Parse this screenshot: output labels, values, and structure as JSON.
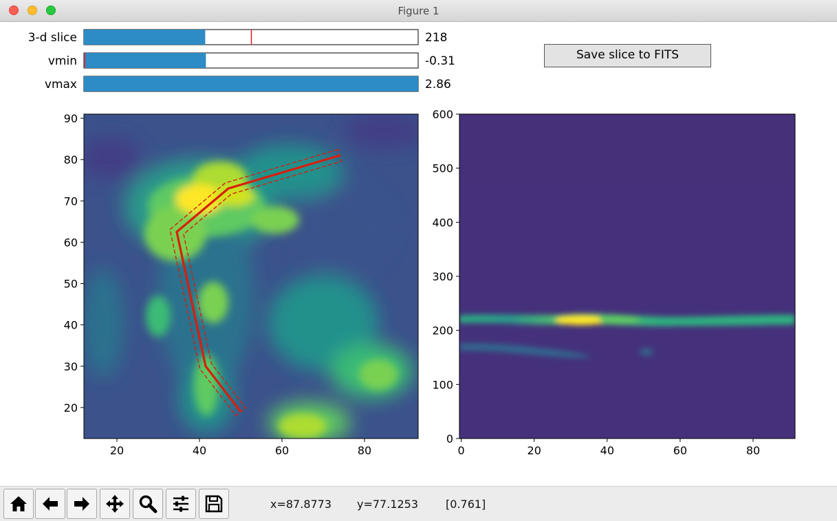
{
  "window": {
    "title": "Figure 1"
  },
  "sliders": [
    {
      "label": "3-d slice",
      "value_text": "218",
      "fill_fraction": 0.363,
      "marker_fraction": 0.501
    },
    {
      "label": "vmin",
      "value_text": "-0.31",
      "fill_fraction": 0.365,
      "marker_fraction": 0.0
    },
    {
      "label": "vmax",
      "value_text": "2.86",
      "fill_fraction": 1.0
    }
  ],
  "save_button": {
    "label": "Save slice to FITS"
  },
  "toolbar": {
    "buttons": [
      "home-icon",
      "back-icon",
      "forward-icon",
      "pan-icon",
      "zoom-icon",
      "configure-icon",
      "save-icon"
    ],
    "x_readout": "x=87.8773",
    "y_readout": "y=77.1253",
    "value_readout": "[0.761]"
  },
  "colors": {
    "slider_fill": "#2d8bc6",
    "path_line": "#d81f0c",
    "colormap": "viridis"
  },
  "chart_data": [
    {
      "type": "heatmap",
      "title": "",
      "colormap": "viridis",
      "xlim": [
        12,
        93
      ],
      "ylim": [
        12.5,
        91
      ],
      "xticks": [
        20,
        40,
        60,
        80
      ],
      "yticks": [
        20,
        30,
        40,
        50,
        60,
        70,
        80,
        90
      ],
      "path": [
        [
          74,
          81
        ],
        [
          47,
          73
        ],
        [
          34.5,
          62.5
        ],
        [
          41.5,
          30
        ],
        [
          50,
          19
        ]
      ],
      "path_band_halfwidth": 1.5
    },
    {
      "type": "heatmap",
      "title": "",
      "colormap": "viridis",
      "xlim": [
        -0.5,
        91.5
      ],
      "ylim": [
        0,
        600
      ],
      "xticks": [
        0,
        20,
        40,
        60,
        80
      ],
      "yticks": [
        0,
        100,
        200,
        300,
        400,
        500,
        600
      ],
      "features": [
        {
          "name": "main band",
          "y_center": 217,
          "x_range": [
            0,
            91
          ],
          "peak_x": 32
        },
        {
          "name": "faint band",
          "y_center": 168,
          "x_range": [
            0,
            37
          ]
        }
      ]
    }
  ]
}
